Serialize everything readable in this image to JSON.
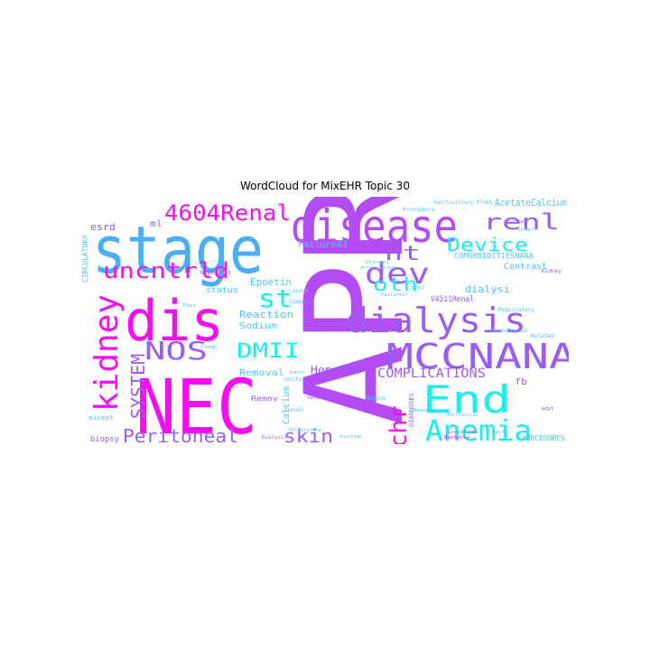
{
  "figure": {
    "title": "WordCloud for MixEHR Topic 30"
  },
  "palette": {
    "magenta": "#f50ff0",
    "purple": "#b44cf5",
    "violet": "#9a5cf5",
    "blue": "#4aaef5",
    "cyan": "#17f0ef",
    "lightblue": "#4cc6f5"
  },
  "cloud": {
    "words": [
      {
        "text": "APR"
      },
      {
        "text": "renal"
      },
      {
        "text": "NEC"
      },
      {
        "text": "stage"
      },
      {
        "text": "disease"
      },
      {
        "text": "dis"
      },
      {
        "text": "kidney"
      },
      {
        "text": "dialysis"
      },
      {
        "text": "MCCNANA"
      },
      {
        "text": "End"
      },
      {
        "text": "Anemia"
      },
      {
        "text": "dev"
      },
      {
        "text": "renl"
      },
      {
        "text": "4604Renal"
      },
      {
        "text": "uncntrld"
      },
      {
        "text": "NOS"
      },
      {
        "text": "DMII"
      },
      {
        "text": "st"
      },
      {
        "text": "nt"
      },
      {
        "text": "Device"
      },
      {
        "text": "oth"
      },
      {
        "text": "chr"
      },
      {
        "text": "SYSTEM"
      },
      {
        "text": "Peritoneal"
      },
      {
        "text": "skin"
      },
      {
        "text": "COMPLICATIONS"
      },
      {
        "text": "Heparin"
      },
      {
        "text": "Removal"
      },
      {
        "text": "Sodium"
      },
      {
        "text": "Reaction"
      },
      {
        "text": "Epoetin"
      },
      {
        "text": "status"
      },
      {
        "text": "Failure43"
      },
      {
        "text": "AcetateCalcium"
      },
      {
        "text": "Contrast"
      },
      {
        "text": "dialysi"
      },
      {
        "text": "esrd"
      },
      {
        "text": "ml"
      },
      {
        "text": "fb"
      },
      {
        "text": "Calcium"
      },
      {
        "text": "Remov"
      },
      {
        "text": "CIRCULATORY"
      },
      {
        "text": "biopsy"
      },
      {
        "text": "PROCEDURES"
      },
      {
        "text": "V4511Renal"
      },
      {
        "text": "Nephrocaps033515680840065O1"
      },
      {
        "text": "COMORBIDITIESNANA"
      },
      {
        "text": "DIAGNOSES"
      },
      {
        "text": "Genitourinary Flush"
      },
      {
        "text": "Nephritis"
      },
      {
        "text": "insert"
      },
      {
        "text": "Principal"
      },
      {
        "text": "Kidney"
      },
      {
        "text": "Related"
      },
      {
        "text": "except"
      },
      {
        "text": "Units"
      },
      {
        "text": "tunnel"
      },
      {
        "text": "Angio"
      },
      {
        "text": "system"
      },
      {
        "text": "Desmopressin"
      },
      {
        "text": "Respiratory"
      },
      {
        "text": "Compli"
      },
      {
        "text": "Urinary"
      },
      {
        "text": "Polystyrene"
      },
      {
        "text": "Procedure"
      },
      {
        "text": "Arteriograph"
      },
      {
        "text": "Failuresr"
      },
      {
        "text": "Hemodialysis"
      },
      {
        "text": "Dialysis"
      },
      {
        "text": "Loosed"
      },
      {
        "text": "Secondary"
      },
      {
        "text": "Obstruction"
      },
      {
        "text": "Tract"
      },
      {
        "text": "Insertion"
      },
      {
        "text": "Vasc"
      },
      {
        "text": "Ther"
      },
      {
        "text": "ther"
      },
      {
        "text": "Comp"
      },
      {
        "text": "wgt"
      },
      {
        "text": "Bacteria"
      }
    ]
  }
}
